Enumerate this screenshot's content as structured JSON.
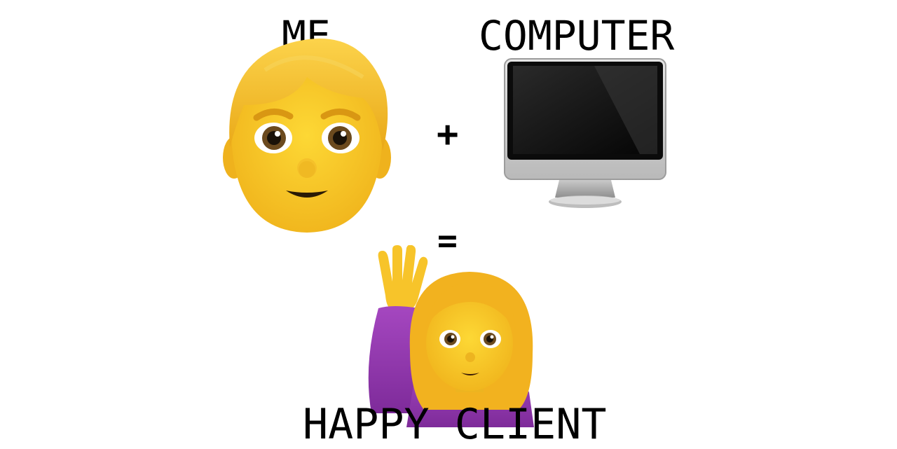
{
  "labels": {
    "me": "ME",
    "computer": "COMPUTER",
    "result": "HAPPY CLIENT"
  },
  "operators": {
    "plus": "+",
    "equals": "="
  },
  "icons": {
    "man": "man-emoji-icon",
    "computer": "desktop-computer-icon",
    "woman": "woman-raising-hand-icon"
  },
  "colors": {
    "skin": "#F7C42A",
    "hair": "#F2B21F",
    "shirt": "#9B3FB5",
    "text": "#000000"
  }
}
